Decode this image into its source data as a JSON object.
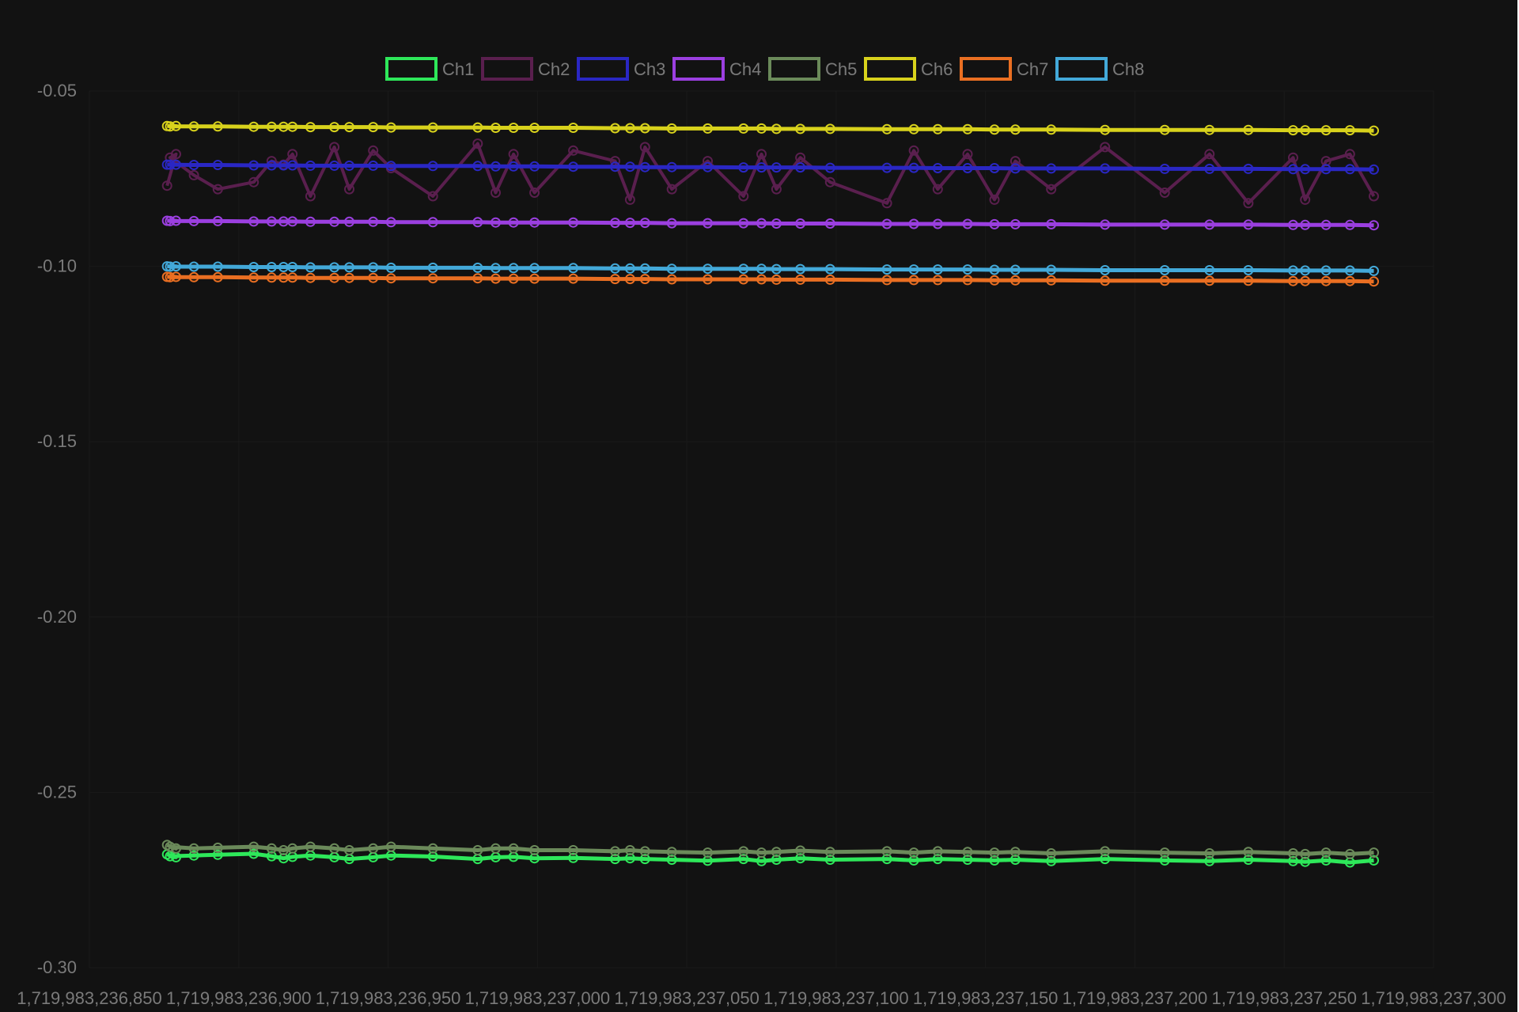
{
  "chart_data": {
    "type": "line",
    "title": "",
    "xlabel": "",
    "ylabel": "",
    "xlim": [
      1719983236850,
      1719983237300
    ],
    "ylim": [
      -0.3,
      -0.05
    ],
    "x_ticks": [
      "1,719,983,236,850",
      "1,719,983,236,900",
      "1,719,983,236,950",
      "1,719,983,237,000",
      "1,719,983,237,050",
      "1,719,983,237,100",
      "1,719,983,237,150",
      "1,719,983,237,200",
      "1,719,983,237,250",
      "1,719,983,237,300"
    ],
    "y_ticks": [
      "-0.05",
      "-0.10",
      "-0.15",
      "-0.20",
      "-0.25",
      "-0.30"
    ],
    "legend_position": "top-center",
    "grid": true,
    "x": [
      1719983236876,
      1719983236879,
      1719983236877,
      1719983236885,
      1719983236893,
      1719983236905,
      1719983236911,
      1719983236915,
      1719983236918,
      1719983236924,
      1719983236932,
      1719983236937,
      1719983236945,
      1719983236951,
      1719983236965,
      1719983236980,
      1719983236986,
      1719983236992,
      1719983236999,
      1719983237012,
      1719983237026,
      1719983237031,
      1719983237036,
      1719983237045,
      1719983237057,
      1719983237069,
      1719983237075,
      1719983237080,
      1719983237088,
      1719983237098,
      1719983237117,
      1719983237126,
      1719983237134,
      1719983237144,
      1719983237153,
      1719983237160,
      1719983237172,
      1719983237190,
      1719983237210,
      1719983237225,
      1719983237238,
      1719983237253,
      1719983237257,
      1719983237264,
      1719983237272,
      1719983237280
    ],
    "series": [
      {
        "name": "Ch1",
        "values": [
          -0.2677,
          -0.2685,
          -0.2682,
          -0.268,
          -0.2678,
          -0.2675,
          -0.2682,
          -0.2688,
          -0.2684,
          -0.268,
          -0.2685,
          -0.269,
          -0.2685,
          -0.268,
          -0.2683,
          -0.269,
          -0.2685,
          -0.2684,
          -0.2688,
          -0.2687,
          -0.269,
          -0.2688,
          -0.269,
          -0.2692,
          -0.2695,
          -0.269,
          -0.2696,
          -0.2692,
          -0.2688,
          -0.2692,
          -0.269,
          -0.2694,
          -0.269,
          -0.2692,
          -0.2694,
          -0.2692,
          -0.2696,
          -0.269,
          -0.2694,
          -0.2696,
          -0.2692,
          -0.2696,
          -0.2698,
          -0.2694,
          -0.27,
          -0.2694
        ]
      },
      {
        "name": "Ch2",
        "values": [
          -0.077,
          -0.068,
          -0.069,
          -0.074,
          -0.078,
          -0.076,
          -0.07,
          -0.071,
          -0.068,
          -0.08,
          -0.066,
          -0.078,
          -0.067,
          -0.072,
          -0.08,
          -0.065,
          -0.079,
          -0.068,
          -0.079,
          -0.067,
          -0.07,
          -0.081,
          -0.066,
          -0.078,
          -0.07,
          -0.08,
          -0.068,
          -0.078,
          -0.069,
          -0.076,
          -0.082,
          -0.067,
          -0.078,
          -0.068,
          -0.081,
          -0.07,
          -0.078,
          -0.066,
          -0.079,
          -0.068,
          -0.082,
          -0.069,
          -0.081,
          -0.07,
          -0.068,
          -0.08
        ]
      },
      {
        "name": "Ch3",
        "values": [
          -0.071,
          -0.071,
          -0.071,
          -0.0711,
          -0.0711,
          -0.0712,
          -0.0712,
          -0.0712,
          -0.0712,
          -0.0713,
          -0.0713,
          -0.0713,
          -0.0713,
          -0.0714,
          -0.0714,
          -0.0714,
          -0.0715,
          -0.0715,
          -0.0715,
          -0.0716,
          -0.0716,
          -0.0716,
          -0.0717,
          -0.0717,
          -0.0717,
          -0.0718,
          -0.0718,
          -0.0718,
          -0.0718,
          -0.0719,
          -0.0719,
          -0.0719,
          -0.072,
          -0.072,
          -0.072,
          -0.0721,
          -0.0721,
          -0.0721,
          -0.0722,
          -0.0722,
          -0.0722,
          -0.0723,
          -0.0723,
          -0.0723,
          -0.0723,
          -0.0724
        ]
      },
      {
        "name": "Ch4",
        "values": [
          -0.087,
          -0.087,
          -0.0871,
          -0.0871,
          -0.0871,
          -0.0872,
          -0.0872,
          -0.0872,
          -0.0872,
          -0.0873,
          -0.0873,
          -0.0873,
          -0.0873,
          -0.0874,
          -0.0874,
          -0.0874,
          -0.0875,
          -0.0875,
          -0.0875,
          -0.0875,
          -0.0876,
          -0.0876,
          -0.0876,
          -0.0877,
          -0.0877,
          -0.0877,
          -0.0877,
          -0.0878,
          -0.0878,
          -0.0878,
          -0.0879,
          -0.0879,
          -0.0879,
          -0.0879,
          -0.088,
          -0.088,
          -0.088,
          -0.0881,
          -0.0881,
          -0.0881,
          -0.0881,
          -0.0882,
          -0.0882,
          -0.0882,
          -0.0882,
          -0.0883
        ]
      },
      {
        "name": "Ch5",
        "values": [
          -0.265,
          -0.266,
          -0.2655,
          -0.266,
          -0.2658,
          -0.2655,
          -0.266,
          -0.2665,
          -0.266,
          -0.2655,
          -0.266,
          -0.2665,
          -0.266,
          -0.2655,
          -0.266,
          -0.2665,
          -0.266,
          -0.266,
          -0.2665,
          -0.2665,
          -0.2668,
          -0.2665,
          -0.2668,
          -0.267,
          -0.2672,
          -0.2668,
          -0.2672,
          -0.267,
          -0.2666,
          -0.267,
          -0.2668,
          -0.2672,
          -0.2668,
          -0.267,
          -0.2672,
          -0.267,
          -0.2674,
          -0.2668,
          -0.2672,
          -0.2674,
          -0.267,
          -0.2674,
          -0.2676,
          -0.2672,
          -0.2676,
          -0.2672
        ]
      },
      {
        "name": "Ch6",
        "values": [
          -0.06,
          -0.06,
          -0.0601,
          -0.0601,
          -0.0601,
          -0.0602,
          -0.0602,
          -0.0602,
          -0.0602,
          -0.0603,
          -0.0603,
          -0.0603,
          -0.0603,
          -0.0604,
          -0.0604,
          -0.0604,
          -0.0605,
          -0.0605,
          -0.0605,
          -0.0605,
          -0.0606,
          -0.0606,
          -0.0606,
          -0.0607,
          -0.0607,
          -0.0607,
          -0.0607,
          -0.0608,
          -0.0608,
          -0.0608,
          -0.0609,
          -0.0609,
          -0.0609,
          -0.0609,
          -0.061,
          -0.061,
          -0.061,
          -0.0611,
          -0.0611,
          -0.0611,
          -0.0611,
          -0.0612,
          -0.0612,
          -0.0612,
          -0.0612,
          -0.0613
        ]
      },
      {
        "name": "Ch7",
        "values": [
          -0.103,
          -0.103,
          -0.1031,
          -0.1031,
          -0.1031,
          -0.1032,
          -0.1032,
          -0.1032,
          -0.1032,
          -0.1033,
          -0.1033,
          -0.1033,
          -0.1033,
          -0.1034,
          -0.1034,
          -0.1034,
          -0.1035,
          -0.1035,
          -0.1035,
          -0.1035,
          -0.1036,
          -0.1036,
          -0.1036,
          -0.1037,
          -0.1037,
          -0.1037,
          -0.1037,
          -0.1038,
          -0.1038,
          -0.1038,
          -0.1039,
          -0.1039,
          -0.1039,
          -0.1039,
          -0.104,
          -0.104,
          -0.104,
          -0.1041,
          -0.1041,
          -0.1041,
          -0.1041,
          -0.1042,
          -0.1042,
          -0.1042,
          -0.1042,
          -0.1043
        ]
      },
      {
        "name": "Ch8",
        "values": [
          -0.1,
          -0.1,
          -0.1001,
          -0.1001,
          -0.1001,
          -0.1002,
          -0.1002,
          -0.1002,
          -0.1002,
          -0.1003,
          -0.1003,
          -0.1003,
          -0.1003,
          -0.1004,
          -0.1004,
          -0.1004,
          -0.1005,
          -0.1005,
          -0.1005,
          -0.1005,
          -0.1006,
          -0.1006,
          -0.1006,
          -0.1007,
          -0.1007,
          -0.1007,
          -0.1007,
          -0.1008,
          -0.1008,
          -0.1008,
          -0.1009,
          -0.1009,
          -0.1009,
          -0.1009,
          -0.101,
          -0.101,
          -0.101,
          -0.1011,
          -0.1011,
          -0.1011,
          -0.1011,
          -0.1012,
          -0.1012,
          -0.1012,
          -0.1012,
          -0.1013
        ]
      }
    ],
    "colors": {
      "Ch1": "#2ee85a",
      "Ch2": "#5a1f4e",
      "Ch3": "#2a27c4",
      "Ch4": "#9b3fe0",
      "Ch5": "#6b8a5a",
      "Ch6": "#d8d21c",
      "Ch7": "#ea6f22",
      "Ch8": "#43a9d9"
    },
    "background": "#121212",
    "grid_color": "#1a1a1a",
    "text_color": "#7a7a7a"
  }
}
